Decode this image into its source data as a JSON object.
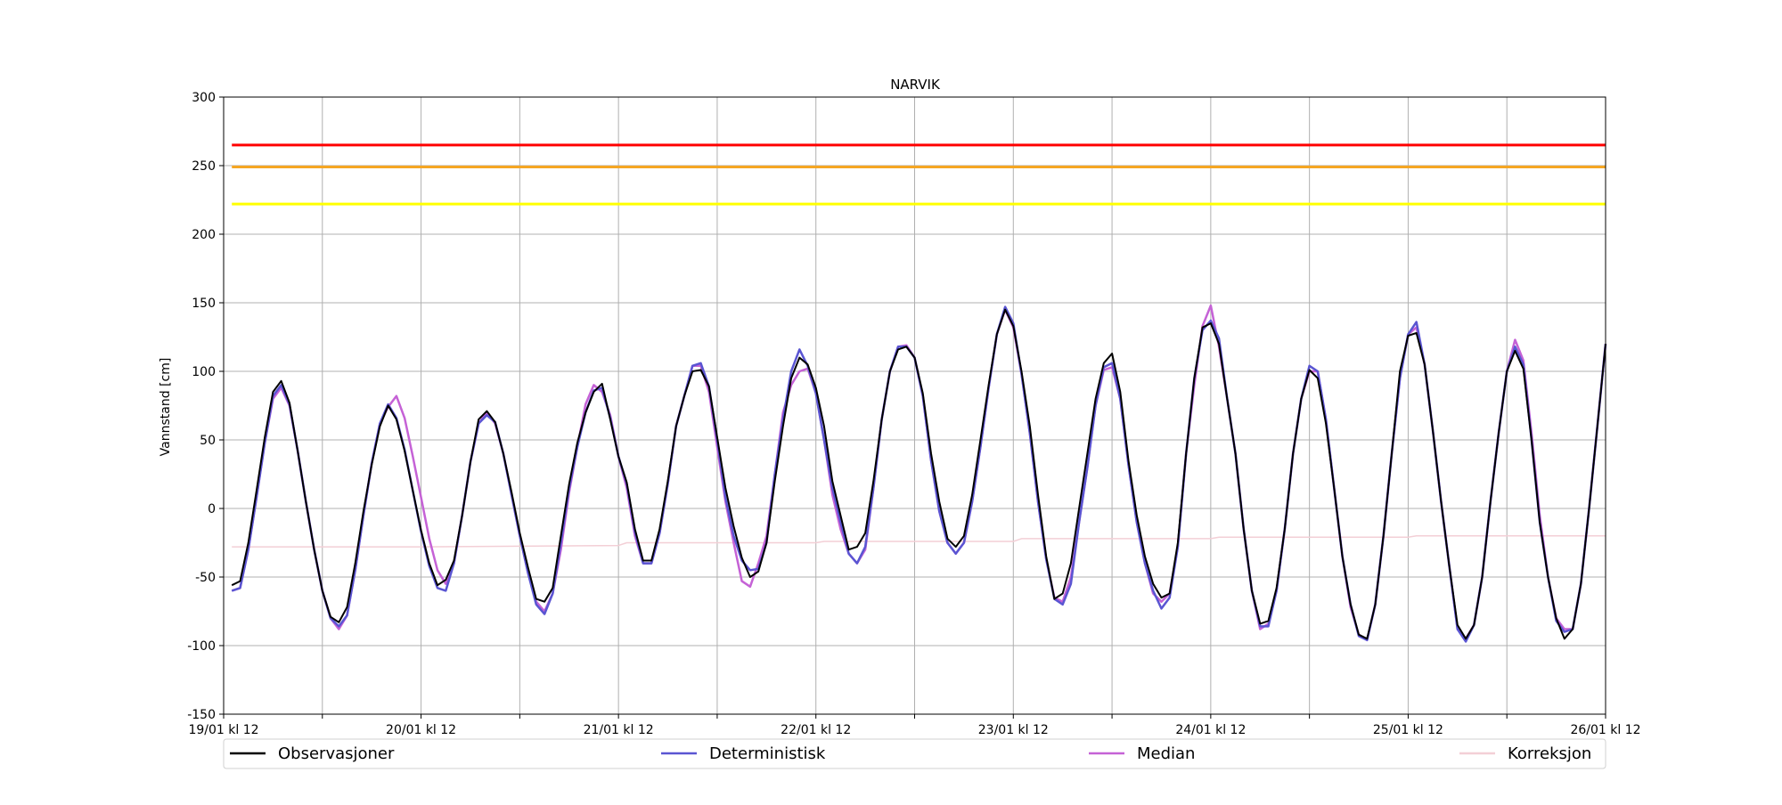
{
  "chart_data": {
    "type": "line",
    "title": "NARVIK",
    "xlabel": "",
    "ylabel": "Vannstand [cm]",
    "ylim": [
      -150,
      300
    ],
    "yticks": [
      -150,
      -100,
      -50,
      0,
      50,
      100,
      150,
      200,
      250,
      300
    ],
    "xlim": [
      0,
      168
    ],
    "xtick_labels": [
      {
        "x": 0,
        "label": "19/01 kl 12"
      },
      {
        "x": 24,
        "label": "20/01 kl 12"
      },
      {
        "x": 48,
        "label": "21/01 kl 12"
      },
      {
        "x": 72,
        "label": "22/01 kl 12"
      },
      {
        "x": 96,
        "label": "23/01 kl 12"
      },
      {
        "x": 120,
        "label": "24/01 kl 12"
      },
      {
        "x": 144,
        "label": "25/01 kl 12"
      },
      {
        "x": 168,
        "label": "26/01 kl 12"
      }
    ],
    "minor_tick_hours": [
      12,
      36,
      60,
      84,
      108,
      132,
      156
    ],
    "grid": true,
    "legend_position": "bottom",
    "threshold_lines": [
      {
        "value": 265,
        "color": "#ff0000"
      },
      {
        "value": 249,
        "color": "#f5a623"
      },
      {
        "value": 222,
        "color": "#ffff00"
      }
    ],
    "series": [
      {
        "name": "Observasjoner",
        "color": "#000000",
        "x": [
          1,
          2,
          3,
          4,
          5,
          6,
          7,
          8,
          9,
          10,
          11,
          12,
          13,
          14,
          15,
          16,
          17,
          18,
          19,
          20,
          21,
          22,
          23,
          24,
          25,
          26,
          27,
          28,
          29,
          30,
          31,
          32,
          33,
          34,
          35,
          36,
          37,
          38,
          39,
          40,
          41,
          42,
          43,
          44,
          45,
          46,
          47,
          48,
          49,
          50,
          51,
          52,
          53,
          54,
          55,
          56,
          57,
          58,
          59,
          60,
          61,
          62,
          63,
          64,
          65,
          66,
          67,
          68,
          69,
          70,
          71,
          72,
          73,
          74,
          75,
          76,
          77,
          78,
          79,
          80,
          81,
          82,
          83,
          84,
          85,
          86,
          87,
          88,
          89,
          90,
          91,
          92,
          93,
          94,
          95,
          96,
          97,
          98,
          99,
          100,
          101,
          102,
          103,
          104,
          105,
          106,
          107,
          108,
          109,
          110,
          111,
          112,
          113,
          114,
          115,
          116,
          117,
          118,
          119,
          120,
          121,
          122,
          123,
          124,
          125,
          126,
          127,
          128,
          129,
          130,
          131,
          132,
          133,
          134,
          135,
          136,
          137,
          138,
          139,
          140,
          141,
          142,
          143,
          144,
          145,
          146,
          147,
          148,
          149,
          150,
          151,
          152,
          153,
          154,
          155,
          156,
          157,
          158,
          159,
          160,
          161,
          162,
          163,
          164,
          165,
          166,
          167,
          168
        ],
        "values": [
          -56,
          -53,
          -25,
          13,
          52,
          85,
          93,
          77,
          42,
          5,
          -30,
          -60,
          -79,
          -83,
          -72,
          -40,
          -2,
          32,
          60,
          75,
          65,
          42,
          13,
          -16,
          -40,
          -56,
          -52,
          -38,
          -5,
          34,
          65,
          71,
          63,
          40,
          12,
          -18,
          -43,
          -66,
          -68,
          -58,
          -20,
          18,
          48,
          70,
          85,
          91,
          65,
          38,
          19,
          -15,
          -38,
          -38,
          -15,
          20,
          60,
          82,
          100,
          101,
          89,
          52,
          15,
          -13,
          -36,
          -50,
          -46,
          -25,
          20,
          60,
          95,
          110,
          105,
          88,
          60,
          20,
          -5,
          -30,
          -28,
          -18,
          20,
          65,
          100,
          116,
          118,
          110,
          84,
          40,
          5,
          -22,
          -28,
          -20,
          10,
          50,
          90,
          127,
          145,
          133,
          100,
          60,
          10,
          -35,
          -66,
          -62,
          -40,
          0,
          40,
          80,
          106,
          113,
          85,
          35,
          -5,
          -35,
          -55,
          -65,
          -62,
          -25,
          40,
          95,
          132,
          135,
          120,
          80,
          40,
          -15,
          -60,
          -84,
          -82,
          -58,
          -15,
          40,
          80,
          101,
          95,
          62,
          15,
          -35,
          -70,
          -92,
          -95,
          -70,
          -20,
          40,
          100,
          126,
          128,
          105,
          57,
          5,
          -42,
          -85,
          -95,
          -85,
          -50,
          5,
          55,
          100,
          115,
          102,
          50,
          -10,
          -50,
          -80,
          -95,
          -88,
          -55,
          0,
          60,
          120
        ]
      },
      {
        "name": "Deterministisk",
        "color": "#5a55d2",
        "x": [
          1,
          2,
          3,
          4,
          5,
          6,
          7,
          8,
          9,
          10,
          11,
          12,
          13,
          14,
          15,
          16,
          17,
          18,
          19,
          20,
          21,
          22,
          23,
          24,
          25,
          26,
          27,
          28,
          29,
          30,
          31,
          32,
          33,
          34,
          35,
          36,
          37,
          38,
          39,
          40,
          41,
          42,
          43,
          44,
          45,
          46,
          47,
          48,
          49,
          50,
          51,
          52,
          53,
          54,
          55,
          56,
          57,
          58,
          59,
          60,
          61,
          62,
          63,
          64,
          65,
          66,
          67,
          68,
          69,
          70,
          71,
          72,
          73,
          74,
          75,
          76,
          77,
          78,
          79,
          80,
          81,
          82,
          83,
          84,
          85,
          86,
          87,
          88,
          89,
          90,
          91,
          92,
          93,
          94,
          95,
          96,
          97,
          98,
          99,
          100,
          101,
          102,
          103,
          104,
          105,
          106,
          107,
          108,
          109,
          110,
          111,
          112,
          113,
          114,
          115,
          116,
          117,
          118,
          119,
          120,
          121,
          122,
          123,
          124,
          125,
          126,
          127,
          128,
          129,
          130,
          131,
          132,
          133,
          134,
          135,
          136,
          137,
          138,
          139,
          140,
          141,
          142,
          143,
          144,
          145,
          146,
          147,
          148,
          149,
          150,
          151,
          152,
          153,
          154,
          155,
          156,
          157,
          158,
          159,
          160,
          161,
          162,
          163,
          164,
          165,
          166,
          167,
          168
        ],
        "values": [
          -60,
          -58,
          -30,
          8,
          48,
          82,
          90,
          76,
          42,
          5,
          -30,
          -60,
          -80,
          -86,
          -78,
          -45,
          -5,
          33,
          62,
          76,
          66,
          43,
          13,
          -17,
          -42,
          -58,
          -60,
          -40,
          -5,
          34,
          62,
          68,
          63,
          40,
          10,
          -20,
          -47,
          -70,
          -77,
          -62,
          -25,
          15,
          45,
          70,
          86,
          88,
          66,
          38,
          18,
          -17,
          -40,
          -40,
          -18,
          18,
          60,
          82,
          104,
          106,
          89,
          50,
          8,
          -20,
          -38,
          -45,
          -44,
          -25,
          25,
          65,
          100,
          116,
          104,
          84,
          50,
          15,
          -10,
          -33,
          -40,
          -28,
          15,
          65,
          100,
          118,
          118,
          110,
          82,
          35,
          -2,
          -25,
          -33,
          -25,
          5,
          45,
          88,
          127,
          147,
          135,
          98,
          55,
          5,
          -37,
          -66,
          -70,
          -55,
          -10,
          30,
          75,
          103,
          106,
          80,
          32,
          -10,
          -40,
          -60,
          -73,
          -65,
          -28,
          40,
          95,
          130,
          137,
          124,
          80,
          40,
          -15,
          -60,
          -86,
          -86,
          -60,
          -15,
          40,
          80,
          104,
          100,
          65,
          15,
          -35,
          -70,
          -93,
          -96,
          -70,
          -20,
          40,
          95,
          127,
          136,
          105,
          57,
          5,
          -42,
          -88,
          -97,
          -85,
          -50,
          5,
          55,
          100,
          118,
          105,
          50,
          -10,
          -50,
          -82,
          -90,
          -88,
          -55,
          0,
          60,
          120
        ]
      },
      {
        "name": "Median",
        "color": "#c562d6",
        "x": [
          1,
          2,
          3,
          4,
          5,
          6,
          7,
          8,
          9,
          10,
          11,
          12,
          13,
          14,
          15,
          16,
          17,
          18,
          19,
          20,
          21,
          22,
          23,
          24,
          25,
          26,
          27,
          28,
          29,
          30,
          31,
          32,
          33,
          34,
          35,
          36,
          37,
          38,
          39,
          40,
          41,
          42,
          43,
          44,
          45,
          46,
          47,
          48,
          49,
          50,
          51,
          52,
          53,
          54,
          55,
          56,
          57,
          58,
          59,
          60,
          61,
          62,
          63,
          64,
          65,
          66,
          67,
          68,
          69,
          70,
          71,
          72,
          73,
          74,
          75,
          76,
          77,
          78,
          79,
          80,
          81,
          82,
          83,
          84,
          85,
          86,
          87,
          88,
          89,
          90,
          91,
          92,
          93,
          94,
          95,
          96,
          97,
          98,
          99,
          100,
          101,
          102,
          103,
          104,
          105,
          106,
          107,
          108,
          109,
          110,
          111,
          112,
          113,
          114,
          115,
          116,
          117,
          118,
          119,
          120,
          121,
          122,
          123,
          124,
          125,
          126,
          127,
          128,
          129,
          130,
          131,
          132,
          133,
          134,
          135,
          136,
          137,
          138,
          139,
          140,
          141,
          142,
          143,
          144,
          145,
          146,
          147,
          148,
          149,
          150,
          151,
          152,
          153,
          154,
          155,
          156,
          157,
          158,
          159,
          160,
          161,
          162,
          163,
          164,
          165,
          166,
          167,
          168
        ],
        "values": [
          -60,
          -58,
          -30,
          8,
          48,
          80,
          88,
          75,
          42,
          5,
          -30,
          -60,
          -80,
          -88,
          -78,
          -45,
          -5,
          33,
          62,
          74,
          82,
          66,
          38,
          8,
          -22,
          -45,
          -55,
          -40,
          -5,
          34,
          62,
          70,
          62,
          40,
          10,
          -20,
          -47,
          -68,
          -75,
          -62,
          -30,
          12,
          45,
          76,
          90,
          85,
          68,
          38,
          15,
          -20,
          -40,
          -40,
          -18,
          18,
          60,
          82,
          104,
          104,
          85,
          45,
          5,
          -25,
          -53,
          -57,
          -40,
          -20,
          25,
          70,
          90,
          100,
          102,
          84,
          50,
          10,
          -15,
          -33,
          -40,
          -30,
          15,
          65,
          100,
          118,
          119,
          110,
          82,
          35,
          -2,
          -25,
          -33,
          -25,
          5,
          45,
          88,
          127,
          145,
          132,
          98,
          55,
          5,
          -37,
          -65,
          -68,
          -50,
          -10,
          30,
          75,
          101,
          103,
          80,
          32,
          -10,
          -40,
          -62,
          -68,
          -62,
          -28,
          40,
          90,
          133,
          148,
          118,
          80,
          40,
          -15,
          -60,
          -88,
          -84,
          -60,
          -15,
          40,
          80,
          100,
          100,
          65,
          15,
          -35,
          -72,
          -92,
          -96,
          -70,
          -20,
          40,
          95,
          127,
          132,
          105,
          57,
          5,
          -42,
          -88,
          -95,
          -85,
          -50,
          5,
          55,
          100,
          123,
          108,
          55,
          -5,
          -50,
          -80,
          -88,
          -88,
          -55,
          0,
          60,
          120
        ]
      },
      {
        "name": "Korreksjon",
        "color": "#f3cfd6",
        "x": [
          1,
          24,
          48,
          49,
          72,
          73,
          96,
          97,
          120,
          121,
          144,
          145,
          168
        ],
        "values": [
          -28,
          -28,
          -27,
          -25,
          -25,
          -24,
          -24,
          -22,
          -22,
          -21,
          -21,
          -20,
          -20
        ]
      }
    ]
  }
}
